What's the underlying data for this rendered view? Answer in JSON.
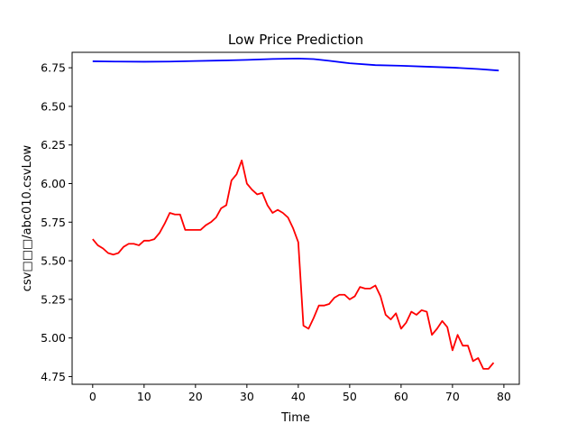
{
  "chart_data": {
    "type": "line",
    "title": "Low Price Prediction",
    "xlabel": "Time",
    "ylabel": "csv□□□/abc010.csvLow",
    "xlim": [
      -4,
      83
    ],
    "ylim": [
      4.7,
      6.85
    ],
    "xticks": [
      0,
      10,
      20,
      30,
      40,
      50,
      60,
      70,
      80
    ],
    "yticks": [
      4.75,
      5.0,
      5.25,
      5.5,
      5.75,
      6.0,
      6.25,
      6.5,
      6.75
    ],
    "ytick_labels": [
      "4.75",
      "5.00",
      "5.25",
      "5.50",
      "5.75",
      "6.00",
      "6.25",
      "6.50",
      "6.75"
    ],
    "grid": false,
    "series": [
      {
        "color": "#0000ff",
        "x": [
          0,
          5,
          10,
          15,
          20,
          25,
          30,
          35,
          40,
          43,
          46,
          50,
          55,
          60,
          65,
          70,
          75,
          79
        ],
        "y": [
          6.792,
          6.79,
          6.789,
          6.79,
          6.794,
          6.797,
          6.801,
          6.807,
          6.81,
          6.806,
          6.795,
          6.779,
          6.767,
          6.763,
          6.757,
          6.751,
          6.742,
          6.732
        ]
      },
      {
        "color": "#ff0000",
        "x": [
          0,
          1,
          2,
          3,
          4,
          5,
          6,
          7,
          8,
          9,
          10,
          11,
          12,
          13,
          14,
          15,
          16,
          17,
          18,
          19,
          20,
          21,
          22,
          23,
          24,
          25,
          26,
          27,
          28,
          29,
          30,
          31,
          32,
          33,
          34,
          35,
          36,
          37,
          38,
          39,
          40,
          41,
          42,
          43,
          44,
          45,
          46,
          47,
          48,
          49,
          50,
          51,
          52,
          53,
          54,
          55,
          56,
          57,
          58,
          59,
          60,
          61,
          62,
          63,
          64,
          65,
          66,
          67,
          68,
          69,
          70,
          71,
          72,
          73,
          74,
          75,
          76,
          77,
          78
        ],
        "y": [
          5.64,
          5.6,
          5.58,
          5.55,
          5.54,
          5.55,
          5.59,
          5.61,
          5.61,
          5.6,
          5.63,
          5.63,
          5.64,
          5.68,
          5.74,
          5.81,
          5.8,
          5.8,
          5.7,
          5.7,
          5.7,
          5.7,
          5.73,
          5.75,
          5.78,
          5.84,
          5.86,
          6.02,
          6.06,
          6.15,
          6.0,
          5.96,
          5.93,
          5.94,
          5.86,
          5.81,
          5.83,
          5.81,
          5.78,
          5.71,
          5.62,
          5.08,
          5.06,
          5.13,
          5.21,
          5.21,
          5.22,
          5.26,
          5.28,
          5.28,
          5.25,
          5.27,
          5.33,
          5.32,
          5.32,
          5.34,
          5.27,
          5.15,
          5.12,
          5.16,
          5.06,
          5.1,
          5.17,
          5.15,
          5.18,
          5.17,
          5.02,
          5.06,
          5.11,
          5.07,
          4.92,
          5.02,
          4.95,
          4.95,
          4.85,
          4.87,
          4.8,
          4.8,
          4.84
        ]
      }
    ]
  }
}
